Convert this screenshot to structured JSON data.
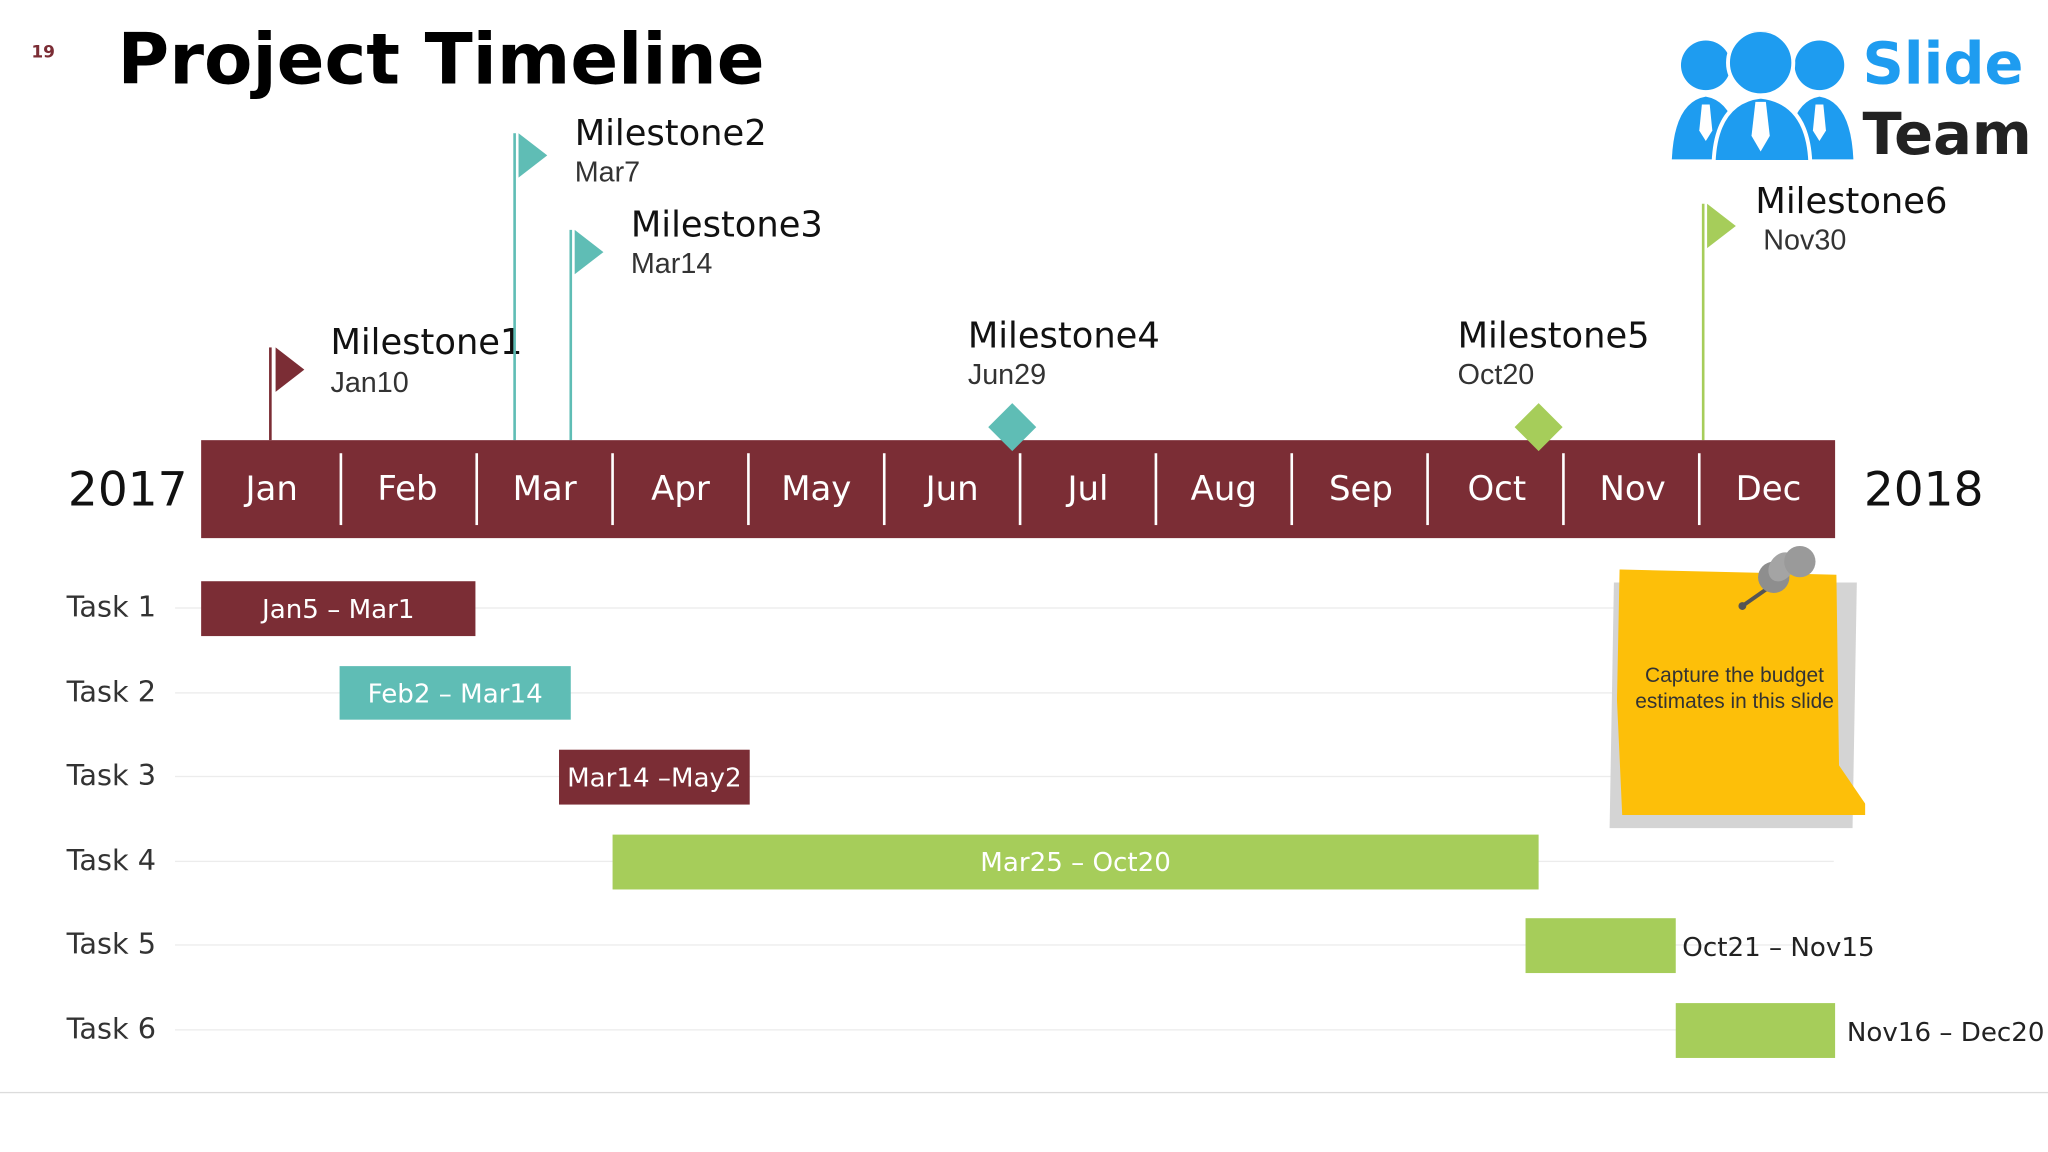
{
  "slide": {
    "number": "19",
    "title": "Project Timeline",
    "logo": {
      "word1": "Slide",
      "word2": "Team"
    }
  },
  "colors": {
    "maroon": "#7b2d35",
    "teal": "#5fbdb5",
    "green": "#a6cd5a",
    "note": "#fdbf09",
    "logo_blue": "#1e9cf0"
  },
  "timeline": {
    "start_year": "2017",
    "end_year": "2018",
    "months": [
      "Jan",
      "Feb",
      "Mar",
      "Apr",
      "May",
      "Jun",
      "Jul",
      "Aug",
      "Sep",
      "Oct",
      "Nov",
      "Dec"
    ]
  },
  "milestones": [
    {
      "name": "Milestone1",
      "date": "Jan10",
      "marker": "flag",
      "color": "#7b2d35"
    },
    {
      "name": "Milestone2",
      "date": "Mar7",
      "marker": "flag",
      "color": "#5fbdb5"
    },
    {
      "name": "Milestone3",
      "date": "Mar14",
      "marker": "flag",
      "color": "#5fbdb5"
    },
    {
      "name": "Milestone4",
      "date": "Jun29",
      "marker": "diamond",
      "color": "#5fbdb5"
    },
    {
      "name": "Milestone5",
      "date": "Oct20",
      "marker": "diamond",
      "color": "#a6cd5a"
    },
    {
      "name": "Milestone6",
      "date": "Nov30",
      "marker": "flag",
      "color": "#a6cd5a"
    }
  ],
  "tasks": [
    {
      "label": "Task 1",
      "range": "Jan5 – Mar1",
      "color": "#7b2d35",
      "label_inside": true
    },
    {
      "label": "Task 2",
      "range": "Feb2 – Mar14",
      "color": "#5fbdb5",
      "label_inside": true
    },
    {
      "label": "Task 3",
      "range": "Mar14 –May2",
      "color": "#7b2d35",
      "label_inside": true
    },
    {
      "label": "Task 4",
      "range": "Mar25 – Oct20",
      "color": "#a6cd5a",
      "label_inside": true
    },
    {
      "label": "Task 5",
      "range": "Oct21 – Nov15",
      "color": "#a6cd5a",
      "label_inside": false
    },
    {
      "label": "Task 6",
      "range": "Nov16 – Dec20",
      "color": "#a6cd5a",
      "label_inside": false
    }
  ],
  "sticky_note": {
    "text": "Capture the budget estimates in this slide"
  }
}
